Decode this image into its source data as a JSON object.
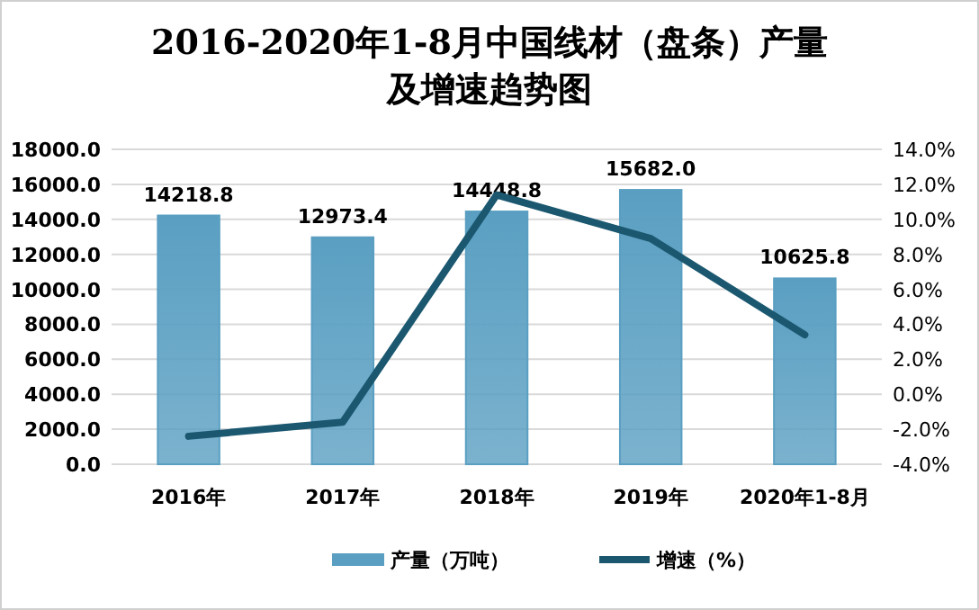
{
  "chart_data": {
    "type": "bar",
    "title": "2016-2020年1-8月中国线材（盘条）产量及增速趋势图",
    "categories": [
      "2016年",
      "2017年",
      "2018年",
      "2019年",
      "2020年1-8月"
    ],
    "series": [
      {
        "name": "产量（万吨）",
        "color": "#5a9fc2",
        "values": [
          14218.8,
          12973.4,
          14448.8,
          15682.0,
          10625.8
        ],
        "value_labels": [
          "14218.8",
          "12973.4",
          "14448.8",
          "15682.0",
          "10625.8"
        ]
      },
      {
        "name": "增速（%）",
        "type": "line",
        "axis": "y2",
        "color": "#1b5870",
        "values": [
          -2.4,
          -1.6,
          11.4,
          8.9,
          3.4
        ]
      }
    ],
    "ylim": [
      0,
      18000
    ],
    "yticks": [
      {
        "value": 0,
        "label": "0.0"
      },
      {
        "value": 2000,
        "label": "2000.0"
      },
      {
        "value": 4000,
        "label": "4000.0"
      },
      {
        "value": 6000,
        "label": "6000.0"
      },
      {
        "value": 8000,
        "label": "8000.0"
      },
      {
        "value": 10000,
        "label": "10000.0"
      },
      {
        "value": 12000,
        "label": "12000.0"
      },
      {
        "value": 14000,
        "label": "14000.0"
      },
      {
        "value": 16000,
        "label": "16000.0"
      },
      {
        "value": 18000,
        "label": "18000.0"
      }
    ],
    "y2lim": [
      -4,
      14
    ],
    "y2ticks": [
      {
        "value": -4,
        "label": "-4.0%"
      },
      {
        "value": -2,
        "label": "-2.0%"
      },
      {
        "value": 0,
        "label": "0.0%"
      },
      {
        "value": 2,
        "label": "2.0%"
      },
      {
        "value": 4,
        "label": "4.0%"
      },
      {
        "value": 6,
        "label": "6.0%"
      },
      {
        "value": 8,
        "label": "8.0%"
      },
      {
        "value": 10,
        "label": "10.0%"
      },
      {
        "value": 12,
        "label": "12.0%"
      },
      {
        "value": 14,
        "label": "14.0%"
      }
    ],
    "grid": "y",
    "legend": "bottom",
    "marker": "none",
    "line_style": "solid"
  }
}
